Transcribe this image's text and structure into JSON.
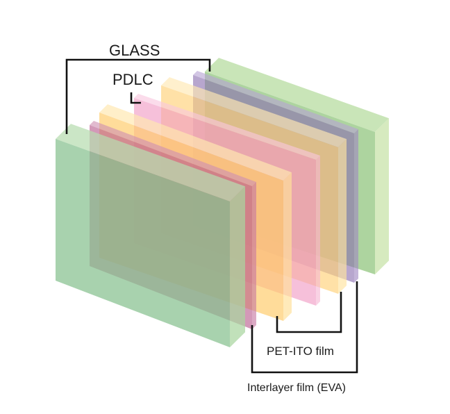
{
  "labels": {
    "glass": "GLASS",
    "pdlc": "PDLC",
    "pet_ito": "PET-ITO film",
    "interlayer": "Interlayer film (EVA)"
  },
  "layers": [
    {
      "name": "back-glass-layer",
      "material": "glass",
      "color": "#9fcd8e",
      "side": "#cfe6b4",
      "top": "#bfe0ac",
      "opacity": 0.85
    },
    {
      "name": "back-eva-layer",
      "material": "eva",
      "color": "#8a6fb0",
      "side": "#a088c2",
      "top": "#b7a3d3",
      "opacity": 0.62
    },
    {
      "name": "back-pet-ito-layer",
      "material": "pet-ito",
      "color": "#ffd27a",
      "side": "#ffe3a0",
      "top": "#ffe8b3",
      "opacity": 0.66
    },
    {
      "name": "pdlc-layer",
      "material": "pdlc",
      "color": "#f09ac4",
      "side": "#f5b6d4",
      "top": "#f8c6de",
      "opacity": 0.62
    },
    {
      "name": "front-pet-ito-layer",
      "material": "pet-ito",
      "color": "#ffcc6a",
      "side": "#ffe09a",
      "top": "#ffe7b0",
      "opacity": 0.68
    },
    {
      "name": "front-eva-layer",
      "material": "eva",
      "color": "#b85a8c",
      "side": "#c777a2",
      "top": "#cf8fb1",
      "opacity": 0.62
    },
    {
      "name": "front-glass-layer",
      "material": "glass",
      "color": "#86c08f",
      "side": "#a9d59f",
      "top": "#b7ddb0",
      "opacity": 0.72
    }
  ]
}
